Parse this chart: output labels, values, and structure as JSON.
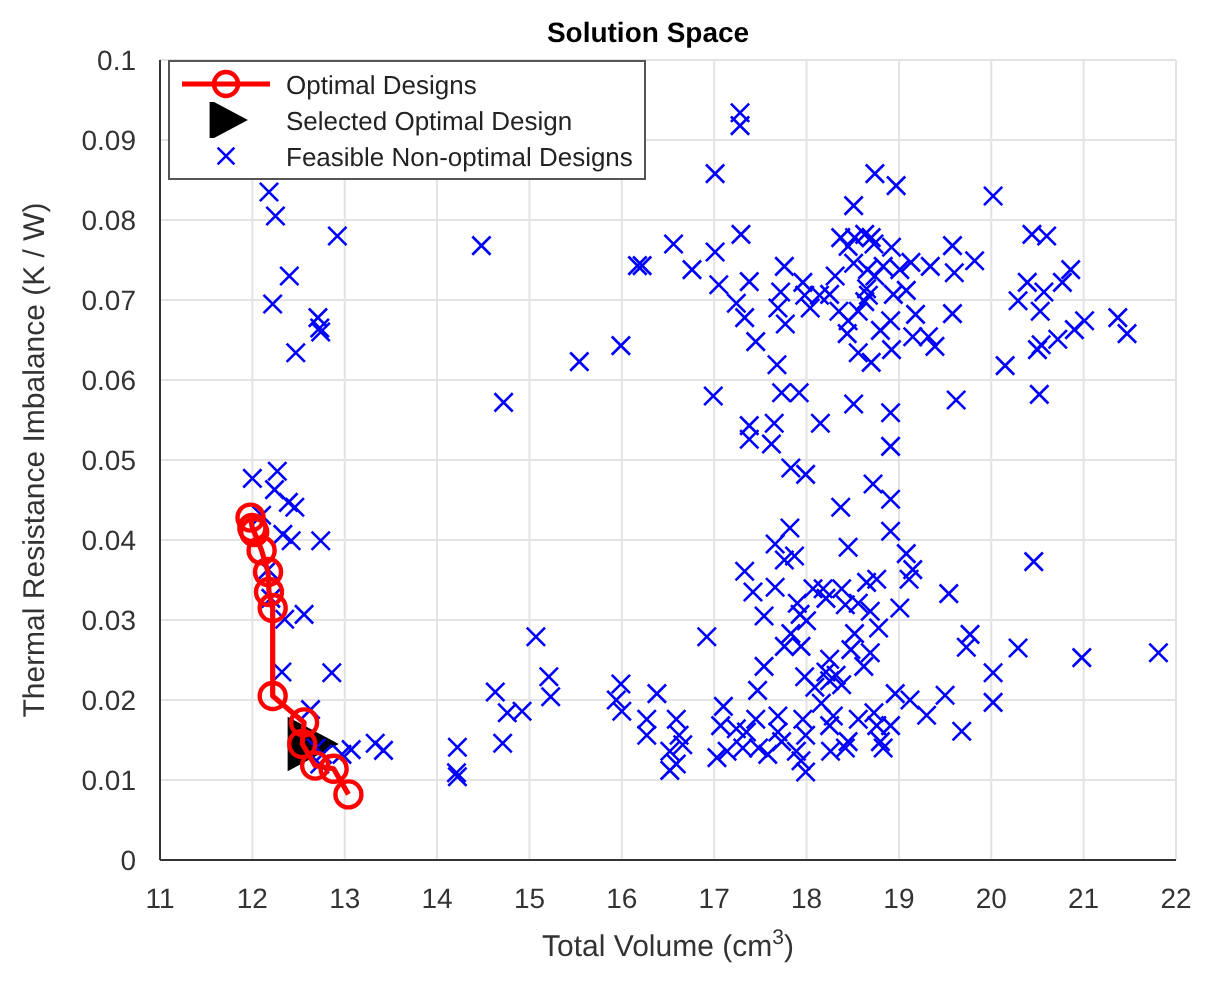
{
  "chart_data": {
    "type": "scatter",
    "title": "Solution Space",
    "xlabel": "Total Volume (cm$^{3}$)",
    "ylabel": "Thermal Resistance Imbalance (K / W)",
    "xlim": [
      11,
      22
    ],
    "xticks": [
      11,
      12,
      13,
      14,
      15,
      16,
      17,
      18,
      19,
      20,
      21,
      22
    ],
    "ylim": [
      0,
      0.1
    ],
    "yticks": [
      0,
      0.01,
      0.02,
      0.03,
      0.04,
      0.05,
      0.06,
      0.07,
      0.08,
      0.09,
      0.1
    ],
    "grid": true,
    "legend": "top left",
    "series": [
      {
        "name": "Optimal Designs",
        "type": "line",
        "marker": "circle",
        "color": "#ff0000",
        "x": [
          11.98,
          12.0,
          12.02,
          12.1,
          12.17,
          12.18,
          12.22,
          12.22,
          12.56,
          12.54,
          12.68,
          12.88,
          13.04
        ],
        "values": [
          0.0428,
          0.0415,
          0.041,
          0.0387,
          0.036,
          0.0335,
          0.0315,
          0.0205,
          0.0172,
          0.0145,
          0.0118,
          0.0114,
          0.0082
        ]
      },
      {
        "name": "Selected Optimal Design",
        "type": "scatter",
        "marker": "triangle",
        "color": "#000000",
        "x": [
          12.62
        ],
        "values": [
          0.0145
        ]
      },
      {
        "name": "Feasible Non-optimal Designs",
        "type": "scatter",
        "marker": "cross",
        "color": "#0000ff",
        "x": [
          12.18,
          12.25,
          12.92,
          12.4,
          12.22,
          12.71,
          12.74,
          12.73,
          12.47,
          14.48,
          14.72,
          15.54,
          15.99,
          16.17,
          17.28,
          17.28,
          17.01,
          18.74,
          18.97,
          20.02,
          18.51,
          16.22,
          16.56,
          16.76,
          17.01,
          17.29,
          17.05,
          17.38,
          17.24,
          17.33,
          17.45,
          17.68,
          17.76,
          17.72,
          17.69,
          17.77,
          17.96,
          17.98,
          18.04,
          18.14,
          18.25,
          18.31,
          18.37,
          18.45,
          18.52,
          18.63,
          18.7,
          18.73,
          18.92,
          18.51,
          18.66,
          18.74,
          18.83,
          18.65,
          18.67,
          18.63,
          18.35,
          18.45,
          18.56,
          18.44,
          18.56,
          18.7,
          18.8,
          18.91,
          18.94,
          19.01,
          19.13,
          19.08,
          19.18,
          19.15,
          19.32,
          19.39,
          19.34,
          19.58,
          19.6,
          19.58,
          19.82,
          18.92,
          20.15,
          20.29,
          20.39,
          20.44,
          20.6,
          20.57,
          20.53,
          20.5,
          20.54,
          20.72,
          20.77,
          20.86,
          20.9,
          21.01,
          21.37,
          21.47,
          16.99,
          17.73,
          17.92,
          18.51,
          18.91,
          19.62,
          20.52,
          17.38,
          17.38,
          17.65,
          17.62,
          18.15,
          18.91,
          17.83,
          17.99,
          18.72,
          18.91,
          18.37,
          18.91,
          17.82,
          17.66,
          18.45,
          17.76,
          17.87,
          17.33,
          17.42,
          17.66,
          17.54,
          16.92,
          17.9,
          17.93,
          18.0,
          18.07,
          18.18,
          18.21,
          18.38,
          18.42,
          18.56,
          18.65,
          18.76,
          18.69,
          18.78,
          18.52,
          18.69,
          18.62,
          18.48,
          17.83,
          17.76,
          17.94,
          17.54,
          18.25,
          18.21,
          18.32,
          18.25,
          18.38,
          17.98,
          18.09,
          18.16,
          17.47,
          19.08,
          19.15,
          19.11,
          19.01,
          19.54,
          19.77,
          19.73,
          20.29,
          20.46,
          20.02,
          20.98,
          21.81,
          20.02,
          19.5,
          19.3,
          19.68,
          19.12,
          18.96,
          16.38,
          16.27,
          16.27,
          16.52,
          16.52,
          16.59,
          16.62,
          16.66,
          16.59,
          17.1,
          17.07,
          17.03,
          17.14,
          17.24,
          17.35,
          17.31,
          17.45,
          17.48,
          17.58,
          17.69,
          17.69,
          17.73,
          17.89,
          17.94,
          17.99,
          17.96,
          17.99,
          18.25,
          18.29,
          18.26,
          18.42,
          18.45,
          18.56,
          18.73,
          18.76,
          18.8,
          18.91,
          18.83,
          12.0,
          12.27,
          12.24,
          12.39,
          12.46,
          12.1,
          12.33,
          12.42,
          12.74,
          12.17,
          12.2,
          12.35,
          12.56,
          12.32,
          12.86,
          12.63,
          12.69,
          12.76,
          12.73,
          12.97,
          13.07,
          13.33,
          13.42,
          14.22,
          14.21,
          14.22,
          14.63,
          14.76,
          14.92,
          14.71,
          15.07,
          15.21,
          15.23,
          15.94,
          15.99,
          16.0
        ],
        "values": [
          0.0835,
          0.0805,
          0.078,
          0.073,
          0.0695,
          0.0678,
          0.066,
          0.0665,
          0.0634,
          0.0768,
          0.0572,
          0.0623,
          0.0643,
          0.0743,
          0.0934,
          0.0918,
          0.0858,
          0.0858,
          0.0843,
          0.083,
          0.0818,
          0.0743,
          0.077,
          0.0738,
          0.076,
          0.0782,
          0.0719,
          0.0723,
          0.0696,
          0.0678,
          0.0648,
          0.0619,
          0.0742,
          0.071,
          0.069,
          0.067,
          0.0722,
          0.0706,
          0.069,
          0.0706,
          0.0707,
          0.073,
          0.0778,
          0.0767,
          0.0778,
          0.0782,
          0.0778,
          0.077,
          0.0766,
          0.0746,
          0.0738,
          0.073,
          0.0742,
          0.0714,
          0.0706,
          0.0698,
          0.0686,
          0.0674,
          0.0686,
          0.0658,
          0.0634,
          0.0622,
          0.0662,
          0.0674,
          0.0707,
          0.0738,
          0.0747,
          0.0712,
          0.0682,
          0.0654,
          0.0654,
          0.0642,
          0.0742,
          0.0768,
          0.0734,
          0.0683,
          0.0749,
          0.0638,
          0.0618,
          0.0699,
          0.0722,
          0.0782,
          0.078,
          0.071,
          0.0686,
          0.0638,
          0.0644,
          0.0651,
          0.0722,
          0.0738,
          0.0663,
          0.0674,
          0.0678,
          0.0658,
          0.058,
          0.0584,
          0.0584,
          0.057,
          0.0559,
          0.0575,
          0.0582,
          0.0543,
          0.0526,
          0.0546,
          0.052,
          0.0546,
          0.0517,
          0.049,
          0.0482,
          0.047,
          0.0451,
          0.0441,
          0.0411,
          0.0415,
          0.0395,
          0.0391,
          0.0375,
          0.038,
          0.0361,
          0.0335,
          0.0341,
          0.0305,
          0.0279,
          0.0321,
          0.0307,
          0.0299,
          0.0339,
          0.0339,
          0.0327,
          0.0339,
          0.0319,
          0.0321,
          0.0347,
          0.0351,
          0.0311,
          0.029,
          0.0283,
          0.0259,
          0.0242,
          0.0263,
          0.0283,
          0.0267,
          0.0267,
          0.0242,
          0.0251,
          0.0235,
          0.0231,
          0.0224,
          0.0219,
          0.0229,
          0.0216,
          0.0196,
          0.0212,
          0.0383,
          0.0363,
          0.0351,
          0.0315,
          0.0333,
          0.0282,
          0.0266,
          0.0265,
          0.0373,
          0.0234,
          0.0253,
          0.0259,
          0.0197,
          0.0206,
          0.0181,
          0.0161,
          0.02,
          0.0208,
          0.0208,
          0.0176,
          0.0156,
          0.0136,
          0.0112,
          0.0176,
          0.0156,
          0.0144,
          0.012,
          0.0192,
          0.0168,
          0.0128,
          0.0136,
          0.0164,
          0.016,
          0.014,
          0.0176,
          0.014,
          0.0132,
          0.018,
          0.016,
          0.0148,
          0.0136,
          0.0124,
          0.011,
          0.0176,
          0.0156,
          0.0168,
          0.018,
          0.0136,
          0.014,
          0.0148,
          0.0176,
          0.0184,
          0.0168,
          0.0148,
          0.0168,
          0.014,
          0.0477,
          0.0486,
          0.0463,
          0.0447,
          0.0441,
          0.0431,
          0.0407,
          0.0399,
          0.0399,
          0.0363,
          0.0327,
          0.0301,
          0.0307,
          0.0235,
          0.0234,
          0.0188,
          0.014,
          0.0132,
          0.012,
          0.0132,
          0.0138,
          0.0146,
          0.0137,
          0.0141,
          0.0109,
          0.0104,
          0.021,
          0.0184,
          0.0186,
          0.0146,
          0.0279,
          0.0229,
          0.0204,
          0.02,
          0.022,
          0.0186
        ]
      }
    ]
  }
}
